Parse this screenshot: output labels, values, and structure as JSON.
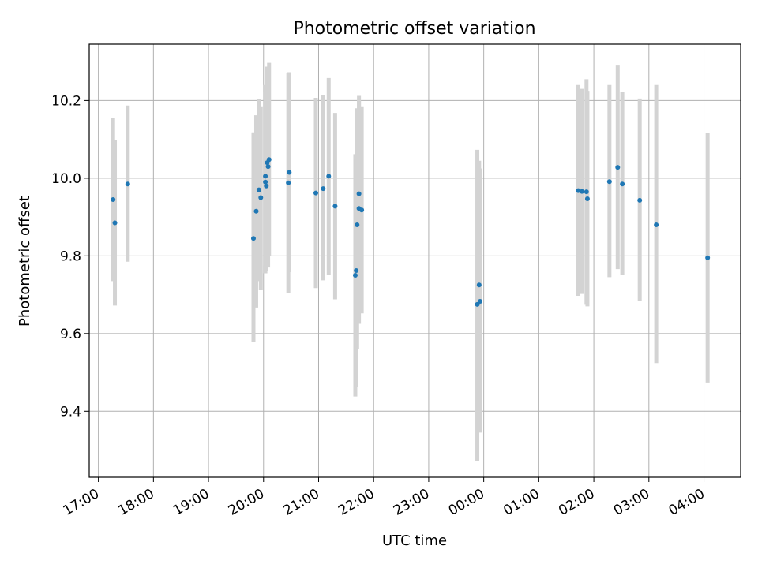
{
  "chart_data": {
    "type": "scatter",
    "title": "Photometric offset variation",
    "xlabel": "UTC time",
    "ylabel": "Photometric offset",
    "grid": true,
    "xlim": [
      "16:50",
      "28:40"
    ],
    "ylim": [
      9.23,
      10.345
    ],
    "x_ticks": [
      {
        "label": "17:00",
        "x": "17:00"
      },
      {
        "label": "18:00",
        "x": "18:00"
      },
      {
        "label": "19:00",
        "x": "19:00"
      },
      {
        "label": "20:00",
        "x": "20:00"
      },
      {
        "label": "21:00",
        "x": "21:00"
      },
      {
        "label": "22:00",
        "x": "22:00"
      },
      {
        "label": "23:00",
        "x": "23:00"
      },
      {
        "label": "00:00",
        "x": "24:00"
      },
      {
        "label": "01:00",
        "x": "25:00"
      },
      {
        "label": "02:00",
        "x": "26:00"
      },
      {
        "label": "03:00",
        "x": "27:00"
      },
      {
        "label": "04:00",
        "x": "28:00"
      }
    ],
    "y_ticks": [
      {
        "label": "9.4",
        "y": 9.4
      },
      {
        "label": "9.6",
        "y": 9.6
      },
      {
        "label": "9.8",
        "y": 9.8
      },
      {
        "label": "10.0",
        "y": 10.0
      },
      {
        "label": "10.2",
        "y": 10.2
      }
    ],
    "marker_color": "#1f77b4",
    "errorbar_color": "#d3d3d3",
    "points": [
      {
        "x": "17:16",
        "y": 9.945,
        "ylo": 9.735,
        "yhi": 10.155
      },
      {
        "x": "17:18",
        "y": 9.885,
        "ylo": 9.672,
        "yhi": 10.098
      },
      {
        "x": "17:32",
        "y": 9.985,
        "ylo": 9.785,
        "yhi": 10.187
      },
      {
        "x": "19:49",
        "y": 9.845,
        "ylo": 9.578,
        "yhi": 10.118
      },
      {
        "x": "19:52",
        "y": 9.915,
        "ylo": 9.667,
        "yhi": 10.162
      },
      {
        "x": "19:55",
        "y": 9.97,
        "ylo": 9.735,
        "yhi": 10.203
      },
      {
        "x": "19:57",
        "y": 9.95,
        "ylo": 9.712,
        "yhi": 10.185
      },
      {
        "x": "20:02",
        "y": 10.005,
        "ylo": 9.775,
        "yhi": 10.24
      },
      {
        "x": "20:02",
        "y": 9.99,
        "ylo": 9.755,
        "yhi": 10.222
      },
      {
        "x": "20:03",
        "y": 9.98,
        "ylo": 9.76,
        "yhi": 10.2
      },
      {
        "x": "20:04",
        "y": 10.04,
        "ylo": 9.79,
        "yhi": 10.287
      },
      {
        "x": "20:05",
        "y": 10.03,
        "ylo": 9.77,
        "yhi": 10.28
      },
      {
        "x": "20:06",
        "y": 10.048,
        "ylo": 9.8,
        "yhi": 10.297
      },
      {
        "x": "20:27",
        "y": 9.988,
        "ylo": 9.705,
        "yhi": 10.27
      },
      {
        "x": "20:28",
        "y": 10.015,
        "ylo": 9.758,
        "yhi": 10.273
      },
      {
        "x": "20:57",
        "y": 9.962,
        "ylo": 9.717,
        "yhi": 10.207
      },
      {
        "x": "21:05",
        "y": 9.973,
        "ylo": 9.737,
        "yhi": 10.213
      },
      {
        "x": "21:11",
        "y": 10.005,
        "ylo": 9.752,
        "yhi": 10.258
      },
      {
        "x": "21:18",
        "y": 9.928,
        "ylo": 9.688,
        "yhi": 10.168
      },
      {
        "x": "21:40",
        "y": 9.75,
        "ylo": 9.438,
        "yhi": 10.062
      },
      {
        "x": "21:41",
        "y": 9.762,
        "ylo": 9.462,
        "yhi": 10.052
      },
      {
        "x": "21:42",
        "y": 9.88,
        "ylo": 9.56,
        "yhi": 10.18
      },
      {
        "x": "21:44",
        "y": 9.96,
        "ylo": 9.702,
        "yhi": 10.212
      },
      {
        "x": "21:44",
        "y": 9.922,
        "ylo": 9.625,
        "yhi": 10.2
      },
      {
        "x": "21:47",
        "y": 9.918,
        "ylo": 9.652,
        "yhi": 10.185
      },
      {
        "x": "23:53",
        "y": 9.675,
        "ylo": 9.272,
        "yhi": 10.073
      },
      {
        "x": "23:55",
        "y": 9.725,
        "ylo": 9.4,
        "yhi": 10.045
      },
      {
        "x": "23:56",
        "y": 9.683,
        "ylo": 9.345,
        "yhi": 10.025
      },
      {
        "x": "25:43",
        "y": 9.968,
        "ylo": 9.697,
        "yhi": 10.24
      },
      {
        "x": "25:47",
        "y": 9.966,
        "ylo": 9.702,
        "yhi": 10.23
      },
      {
        "x": "25:52",
        "y": 9.965,
        "ylo": 9.676,
        "yhi": 10.255
      },
      {
        "x": "25:53",
        "y": 9.947,
        "ylo": 9.67,
        "yhi": 10.225
      },
      {
        "x": "26:17",
        "y": 9.991,
        "ylo": 9.745,
        "yhi": 10.24
      },
      {
        "x": "26:26",
        "y": 10.028,
        "ylo": 9.766,
        "yhi": 10.29
      },
      {
        "x": "26:31",
        "y": 9.985,
        "ylo": 9.75,
        "yhi": 10.222
      },
      {
        "x": "26:50",
        "y": 9.943,
        "ylo": 9.683,
        "yhi": 10.205
      },
      {
        "x": "27:08",
        "y": 9.88,
        "ylo": 9.524,
        "yhi": 10.24
      },
      {
        "x": "28:04",
        "y": 9.795,
        "ylo": 9.474,
        "yhi": 10.116
      }
    ]
  }
}
